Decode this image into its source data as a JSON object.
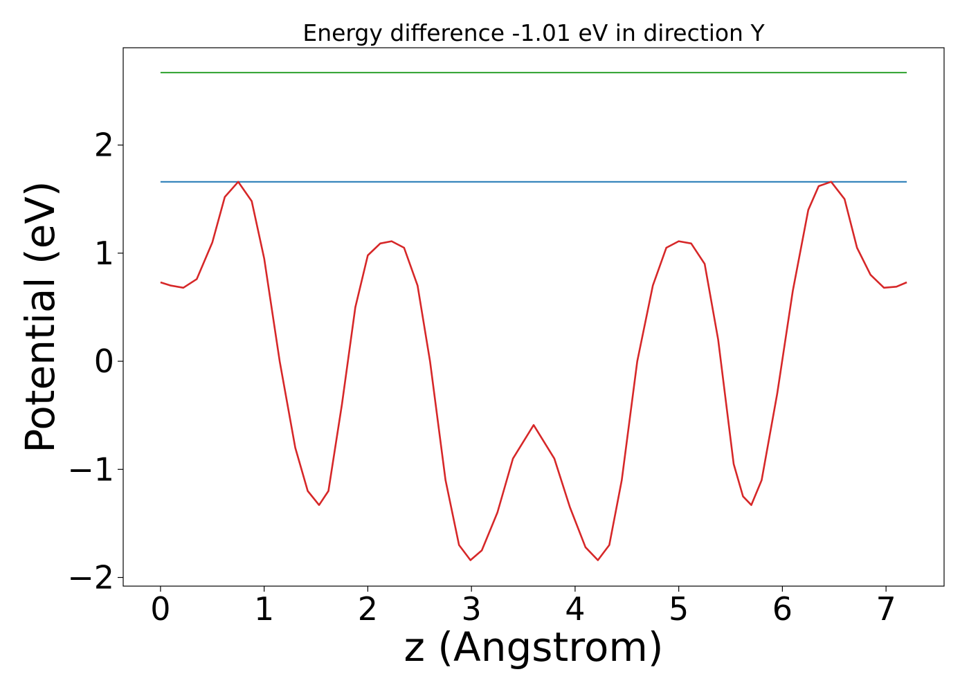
{
  "chart_data": {
    "type": "line",
    "title": "Energy difference -1.01 eV in direction Y",
    "xlabel": "z (Angstrom)",
    "ylabel": "Potential (eV)",
    "xlim": [
      -0.36,
      7.56
    ],
    "ylim": [
      -2.08,
      2.9
    ],
    "xticks": [
      0,
      1,
      2,
      3,
      4,
      5,
      6,
      7
    ],
    "xtick_labels": [
      "0",
      "1",
      "2",
      "3",
      "4",
      "5",
      "6",
      "7"
    ],
    "yticks": [
      -2,
      -1,
      0,
      1,
      2
    ],
    "ytick_labels": [
      "−2",
      "−1",
      "0",
      "1",
      "2"
    ],
    "grid": false,
    "series": [
      {
        "color": "#2ca02c",
        "x": [
          0,
          7.2
        ],
        "y": [
          2.67,
          2.67
        ]
      },
      {
        "color": "#1f77b4",
        "x": [
          0,
          7.2
        ],
        "y": [
          1.66,
          1.66
        ]
      },
      {
        "color": "#d62728",
        "x": [
          0,
          0.1,
          0.22,
          0.35,
          0.5,
          0.62,
          0.75,
          0.88,
          1.0,
          1.15,
          1.3,
          1.42,
          1.53,
          1.62,
          1.75,
          1.88,
          2.0,
          2.12,
          2.23,
          2.35,
          2.48,
          2.6,
          2.75,
          2.88,
          2.99,
          3.1,
          3.25,
          3.4,
          3.6,
          3.8,
          3.95,
          4.1,
          4.22,
          4.33,
          4.45,
          4.6,
          4.75,
          4.88,
          5.0,
          5.12,
          5.25,
          5.38,
          5.53,
          5.62,
          5.7,
          5.8,
          5.95,
          6.1,
          6.25,
          6.35,
          6.47,
          6.6,
          6.72,
          6.85,
          6.98,
          7.1,
          7.2
        ],
        "y": [
          0.73,
          0.7,
          0.68,
          0.76,
          1.1,
          1.52,
          1.66,
          1.48,
          0.95,
          0.0,
          -0.8,
          -1.2,
          -1.33,
          -1.2,
          -0.4,
          0.5,
          0.98,
          1.09,
          1.11,
          1.05,
          0.7,
          0.0,
          -1.1,
          -1.7,
          -1.84,
          -1.75,
          -1.4,
          -0.9,
          -0.59,
          -0.9,
          -1.35,
          -1.72,
          -1.84,
          -1.7,
          -1.1,
          0.0,
          0.7,
          1.05,
          1.11,
          1.09,
          0.9,
          0.2,
          -0.95,
          -1.25,
          -1.33,
          -1.1,
          -0.3,
          0.65,
          1.4,
          1.62,
          1.66,
          1.5,
          1.05,
          0.8,
          0.68,
          0.69,
          0.73
        ]
      }
    ]
  }
}
